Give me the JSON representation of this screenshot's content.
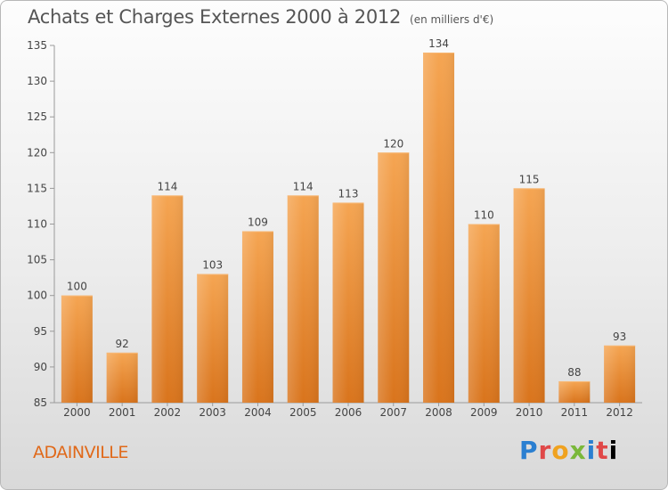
{
  "title": "Achats et Charges Externes 2000 à 2012",
  "unit_note": "(en milliers d'€)",
  "commune": "ADAINVILLE",
  "logo_text": "Proxiti",
  "colors": {
    "bar": "#f0963e",
    "bar_dark": "#d9741c",
    "commune": "#e0691a"
  },
  "chart_data": {
    "type": "bar",
    "title": "Achats et Charges Externes 2000 à 2012",
    "xlabel": "",
    "ylabel": "",
    "categories": [
      "2000",
      "2001",
      "2002",
      "2003",
      "2004",
      "2005",
      "2006",
      "2007",
      "2008",
      "2009",
      "2010",
      "2011",
      "2012"
    ],
    "values": [
      100,
      92,
      114,
      103,
      109,
      114,
      113,
      120,
      134,
      110,
      115,
      88,
      93
    ],
    "ylim": [
      85,
      135
    ],
    "yticks": [
      85,
      90,
      95,
      100,
      105,
      110,
      115,
      120,
      125,
      130,
      135
    ],
    "grid": false,
    "legend": "none"
  }
}
